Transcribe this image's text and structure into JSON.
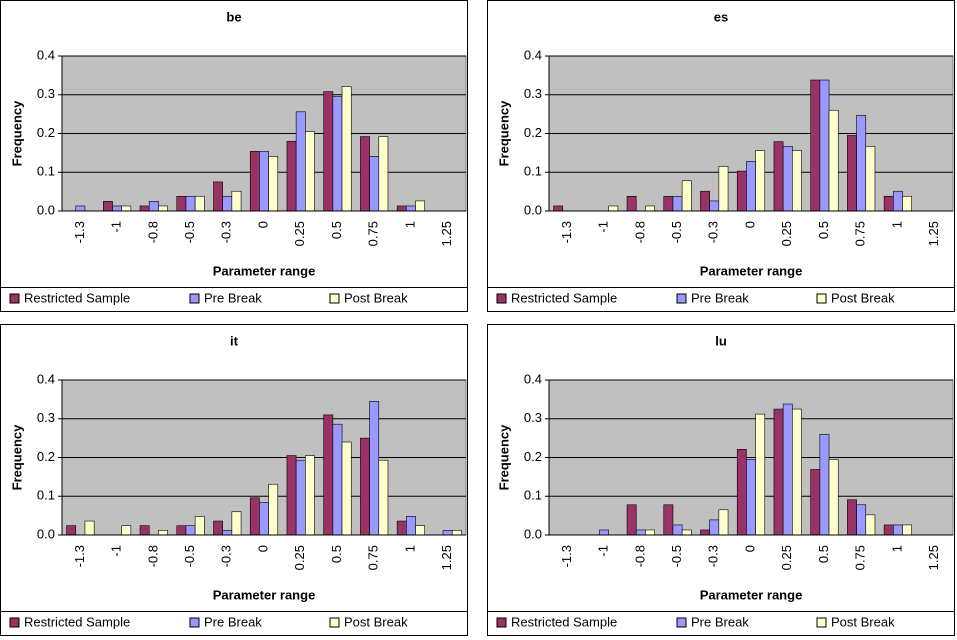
{
  "chart_data": [
    {
      "type": "bar",
      "title": "be",
      "x_label": "Parameter range",
      "y_label": "Frequency",
      "categories": [
        "-1.3",
        "-1",
        "-0.8",
        "-0.5",
        "-0.3",
        "0",
        "0.25",
        "0.5",
        "0.75",
        "1",
        "1.25"
      ],
      "series": [
        {
          "name": "Restricted Sample",
          "color": "#993366",
          "values": [
            0,
            0.025,
            0.013,
            0.038,
            0.075,
            0.154,
            0.18,
            0.308,
            0.192,
            0.013,
            0
          ]
        },
        {
          "name": "Pre Break",
          "color": "#9999ff",
          "values": [
            0.013,
            0.013,
            0.025,
            0.038,
            0.038,
            0.154,
            0.256,
            0.295,
            0.141,
            0.013,
            0
          ]
        },
        {
          "name": "Post Break",
          "color": "#ffffcc",
          "values": [
            0,
            0.013,
            0.013,
            0.038,
            0.051,
            0.141,
            0.205,
            0.321,
            0.192,
            0.026,
            0
          ]
        }
      ],
      "ylim": [
        0,
        0.4
      ],
      "yticks": [
        {
          "value": 0,
          "label": "0.0"
        },
        0.1,
        0.2,
        0.3,
        0.4
      ],
      "grid": true,
      "legend": "bottom"
    },
    {
      "type": "bar",
      "title": "es",
      "x_label": "Parameter range",
      "y_label": "Frequency",
      "categories": [
        "-1.3",
        "-1",
        "-0.8",
        "-0.5",
        "-0.3",
        "0",
        "0.25",
        "0.5",
        "0.75",
        "1",
        "1.25"
      ],
      "series": [
        {
          "name": "Restricted Sample",
          "color": "#993366",
          "values": [
            0.013,
            0,
            0.038,
            0.038,
            0.051,
            0.103,
            0.179,
            0.338,
            0.195,
            0.038,
            0
          ]
        },
        {
          "name": "Pre Break",
          "color": "#9999ff",
          "values": [
            0,
            0,
            0,
            0.038,
            0.026,
            0.128,
            0.167,
            0.338,
            0.247,
            0.051,
            0
          ]
        },
        {
          "name": "Post Break",
          "color": "#ffffcc",
          "values": [
            0,
            0.013,
            0.013,
            0.078,
            0.115,
            0.156,
            0.156,
            0.26,
            0.167,
            0.038,
            0
          ]
        }
      ],
      "ylim": [
        0,
        0.4
      ],
      "yticks": [
        {
          "value": 0,
          "label": "0.0"
        },
        0.1,
        0.2,
        0.3,
        0.4
      ],
      "grid": true,
      "legend": "bottom"
    },
    {
      "type": "bar",
      "title": "it",
      "x_label": "Parameter range",
      "y_label": "Frequency",
      "categories": [
        "-1.3",
        "-1",
        "-0.8",
        "-0.5",
        "-0.3",
        "0",
        "0.25",
        "0.5",
        "0.75",
        "1",
        "1.25"
      ],
      "series": [
        {
          "name": "Restricted Sample",
          "color": "#993366",
          "values": [
            0.024,
            0,
            0.024,
            0.024,
            0.036,
            0.096,
            0.205,
            0.31,
            0.25,
            0.036,
            0
          ]
        },
        {
          "name": "Pre Break",
          "color": "#9999ff",
          "values": [
            0,
            0,
            0,
            0.024,
            0.012,
            0.084,
            0.193,
            0.286,
            0.345,
            0.048,
            0.012
          ]
        },
        {
          "name": "Post Break",
          "color": "#ffffcc",
          "values": [
            0.036,
            0.024,
            0.012,
            0.048,
            0.06,
            0.131,
            0.205,
            0.24,
            0.193,
            0.024,
            0.012
          ]
        }
      ],
      "ylim": [
        0,
        0.4
      ],
      "yticks": [
        {
          "value": 0,
          "label": "0.0"
        },
        0.1,
        0.2,
        0.3,
        0.4
      ],
      "grid": true,
      "legend": "bottom"
    },
    {
      "type": "bar",
      "title": "lu",
      "x_label": "Parameter range",
      "y_label": "Frequency",
      "categories": [
        "-1.3",
        "-1",
        "-0.8",
        "-0.5",
        "-0.3",
        "0",
        "0.25",
        "0.5",
        "0.75",
        "1",
        "1.25"
      ],
      "series": [
        {
          "name": "Restricted Sample",
          "color": "#993366",
          "values": [
            0,
            0,
            0.078,
            0.078,
            0.013,
            0.221,
            0.325,
            0.169,
            0.091,
            0.026,
            0
          ]
        },
        {
          "name": "Pre Break",
          "color": "#9999ff",
          "values": [
            0,
            0.013,
            0.013,
            0.026,
            0.039,
            0.195,
            0.338,
            0.26,
            0.078,
            0.026,
            0
          ]
        },
        {
          "name": "Post Break",
          "color": "#ffffcc",
          "values": [
            0,
            0,
            0.013,
            0.013,
            0.065,
            0.312,
            0.325,
            0.195,
            0.052,
            0.026,
            0
          ]
        }
      ],
      "ylim": [
        0,
        0.4
      ],
      "yticks": [
        {
          "value": 0,
          "label": "0.0"
        },
        0.1,
        0.2,
        0.3,
        0.4
      ],
      "grid": true,
      "legend": "bottom"
    }
  ]
}
